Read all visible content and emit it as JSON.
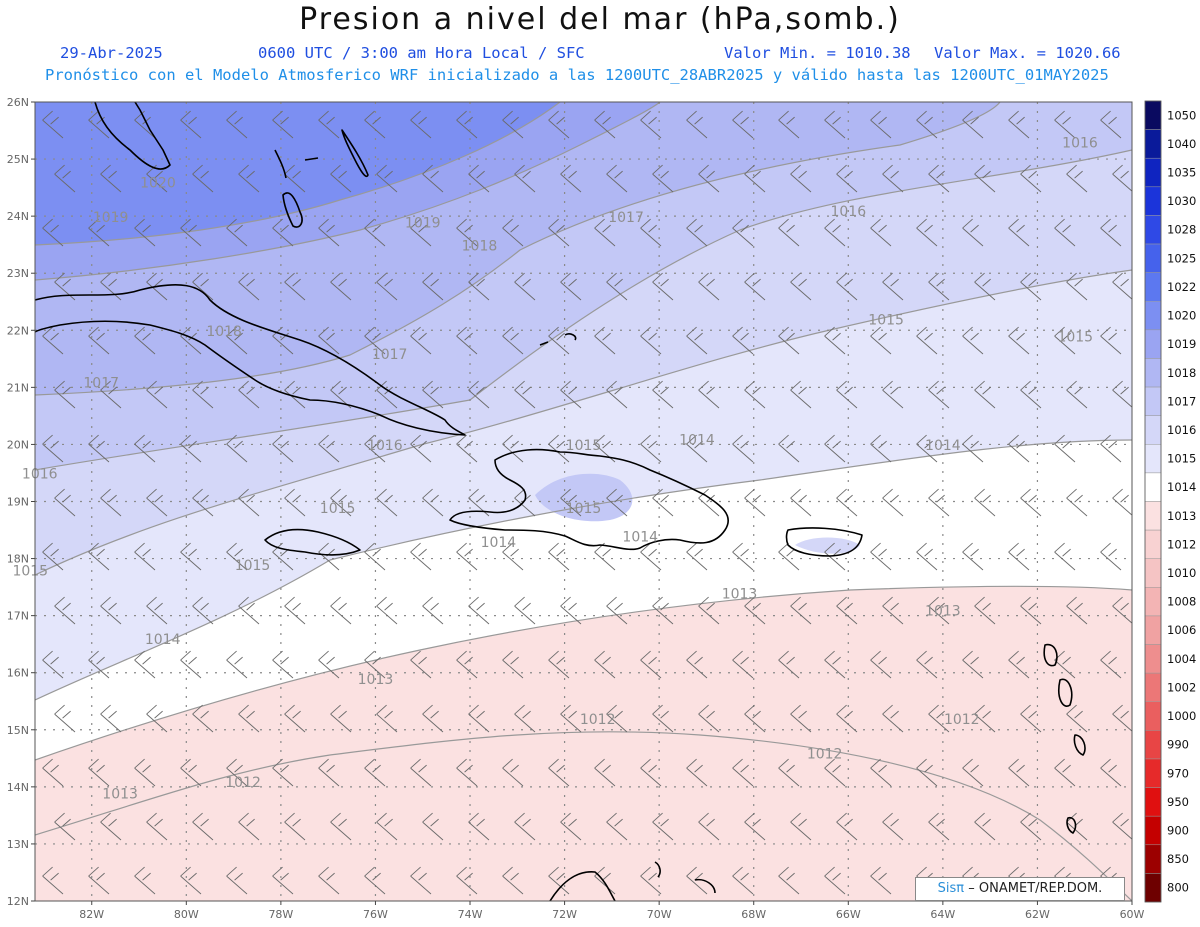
{
  "header": {
    "title": "Presion a nivel del mar (hPa,somb.)",
    "date": "29-Abr-2025",
    "time_info": "0600 UTC / 3:00 am Hora Local / SFC",
    "value_min": "Valor Min. = 1010.38",
    "value_max": "Valor Max. = 1020.66",
    "forecast_info": "Pronóstico con el Modelo Atmosferico WRF inicializado a las 1200UTC_28ABR2025 y válido hasta las  1200UTC_01MAY2025"
  },
  "map": {
    "lat_labels": [
      "12N",
      "13N",
      "14N",
      "15N",
      "16N",
      "17N",
      "18N",
      "19N",
      "20N",
      "21N",
      "22N",
      "23N",
      "24N",
      "25N",
      "26N"
    ],
    "lon_labels": [
      "82W",
      "80W",
      "78W",
      "76W",
      "74W",
      "72W",
      "70W",
      "68W",
      "66W",
      "64W",
      "62W",
      "60W"
    ],
    "isobar_labels": [
      {
        "text": "1020",
        "lon": -80.6,
        "lat": 24.5
      },
      {
        "text": "1019",
        "lon": -81.6,
        "lat": 23.9
      },
      {
        "text": "1019",
        "lon": -75.0,
        "lat": 23.8
      },
      {
        "text": "1018",
        "lon": -79.2,
        "lat": 21.9
      },
      {
        "text": "1018",
        "lon": -73.8,
        "lat": 23.4
      },
      {
        "text": "1017",
        "lon": -81.8,
        "lat": 21.0
      },
      {
        "text": "1017",
        "lon": -75.7,
        "lat": 21.5
      },
      {
        "text": "1017",
        "lon": -70.7,
        "lat": 23.9
      },
      {
        "text": "1016",
        "lon": -83.1,
        "lat": 19.4
      },
      {
        "text": "1016",
        "lon": -75.8,
        "lat": 19.9
      },
      {
        "text": "1016",
        "lon": -66.0,
        "lat": 24.0
      },
      {
        "text": "1016",
        "lon": -61.1,
        "lat": 25.2
      },
      {
        "text": "1015",
        "lon": -76.8,
        "lat": 18.8
      },
      {
        "text": "1015",
        "lon": -71.6,
        "lat": 19.9
      },
      {
        "text": "1015",
        "lon": -71.6,
        "lat": 18.8
      },
      {
        "text": "1015",
        "lon": -65.2,
        "lat": 22.1
      },
      {
        "text": "1015",
        "lon": -61.2,
        "lat": 21.8
      },
      {
        "text": "1015",
        "lon": -83.3,
        "lat": 17.7
      },
      {
        "text": "1015",
        "lon": -78.6,
        "lat": 17.8
      },
      {
        "text": "1014",
        "lon": -73.4,
        "lat": 18.2
      },
      {
        "text": "1014",
        "lon": -70.4,
        "lat": 18.3
      },
      {
        "text": "1014",
        "lon": -69.2,
        "lat": 20.0
      },
      {
        "text": "1014",
        "lon": -64.0,
        "lat": 19.9
      },
      {
        "text": "1014",
        "lon": -80.5,
        "lat": 16.5
      },
      {
        "text": "1013",
        "lon": -76.0,
        "lat": 15.8
      },
      {
        "text": "1013",
        "lon": -68.3,
        "lat": 17.3
      },
      {
        "text": "1013",
        "lon": -64.0,
        "lat": 17.0
      },
      {
        "text": "1013",
        "lon": -81.4,
        "lat": 13.8
      },
      {
        "text": "1012",
        "lon": -71.3,
        "lat": 15.1
      },
      {
        "text": "1012",
        "lon": -66.5,
        "lat": 14.5
      },
      {
        "text": "1012",
        "lon": -63.6,
        "lat": 15.1
      },
      {
        "text": "1012",
        "lon": -78.8,
        "lat": 14.0
      }
    ]
  },
  "legend": {
    "entries": [
      {
        "label": "1050",
        "color": "#0a0a60"
      },
      {
        "label": "1040",
        "color": "#0a1a9a"
      },
      {
        "label": "1035",
        "color": "#0f24c0"
      },
      {
        "label": "1030",
        "color": "#1b34da"
      },
      {
        "label": "1028",
        "color": "#2f49e6"
      },
      {
        "label": "1025",
        "color": "#4562ec"
      },
      {
        "label": "1022",
        "color": "#5c78f0"
      },
      {
        "label": "1020",
        "color": "#7c8ff2"
      },
      {
        "label": "1019",
        "color": "#9aa4f2"
      },
      {
        "label": "1018",
        "color": "#b0b7f3"
      },
      {
        "label": "1017",
        "color": "#c3c8f6"
      },
      {
        "label": "1016",
        "color": "#d4d7f8"
      },
      {
        "label": "1015",
        "color": "#e4e6fb"
      },
      {
        "label": "1014",
        "color": "#ffffff"
      },
      {
        "label": "1013",
        "color": "#fbe1e1"
      },
      {
        "label": "1012",
        "color": "#f8d2d2"
      },
      {
        "label": "1010",
        "color": "#f5c4c4"
      },
      {
        "label": "1008",
        "color": "#f3b4b4"
      },
      {
        "label": "1006",
        "color": "#f0a2a2"
      },
      {
        "label": "1004",
        "color": "#ee8e8e"
      },
      {
        "label": "1002",
        "color": "#ec7777"
      },
      {
        "label": "1000",
        "color": "#ea5f5f"
      },
      {
        "label": "990",
        "color": "#e84545"
      },
      {
        "label": "970",
        "color": "#e62a2a"
      },
      {
        "label": "950",
        "color": "#e01010"
      },
      {
        "label": "900",
        "color": "#c40000"
      },
      {
        "label": "850",
        "color": "#9c0000"
      },
      {
        "label": "800",
        "color": "#6e0000"
      }
    ]
  },
  "credit": {
    "sis": "Sisπ",
    "org": "– ONAMET/REP.DOM."
  }
}
